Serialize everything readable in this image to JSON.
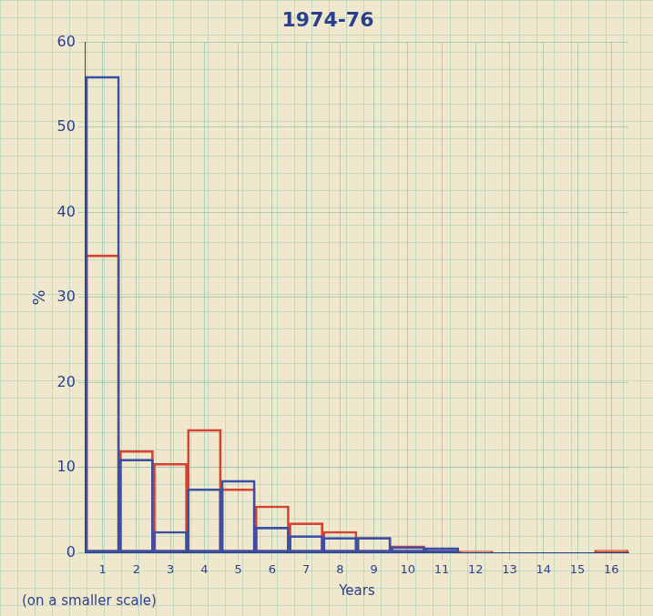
{
  "chart_data": {
    "type": "bar",
    "title": "1974-76",
    "x_label": "Years",
    "y_label": "%",
    "annotations": [
      "(on a smaller scale)"
    ],
    "categories": [
      "1",
      "2",
      "3",
      "4",
      "5",
      "6",
      "7",
      "8",
      "9",
      "10",
      "11",
      "12",
      "13",
      "14",
      "15",
      "16"
    ],
    "series": [
      {
        "color": "#3a4fa8",
        "values": [
          56,
          11,
          2.5,
          7.5,
          8.5,
          3,
          2,
          1.8,
          1.8,
          0.7,
          0.6,
          0,
          0,
          0,
          0,
          0
        ]
      },
      {
        "color": "#d8412f",
        "values": [
          35,
          12,
          10.5,
          14.5,
          7.5,
          5.5,
          3.5,
          2.5,
          1.8,
          0.8,
          0.5,
          0.2,
          0,
          0,
          0,
          0.3
        ]
      }
    ],
    "ylim": [
      0,
      60
    ],
    "yticks": [
      0,
      10,
      20,
      30,
      40,
      50,
      60
    ],
    "grid": true
  }
}
